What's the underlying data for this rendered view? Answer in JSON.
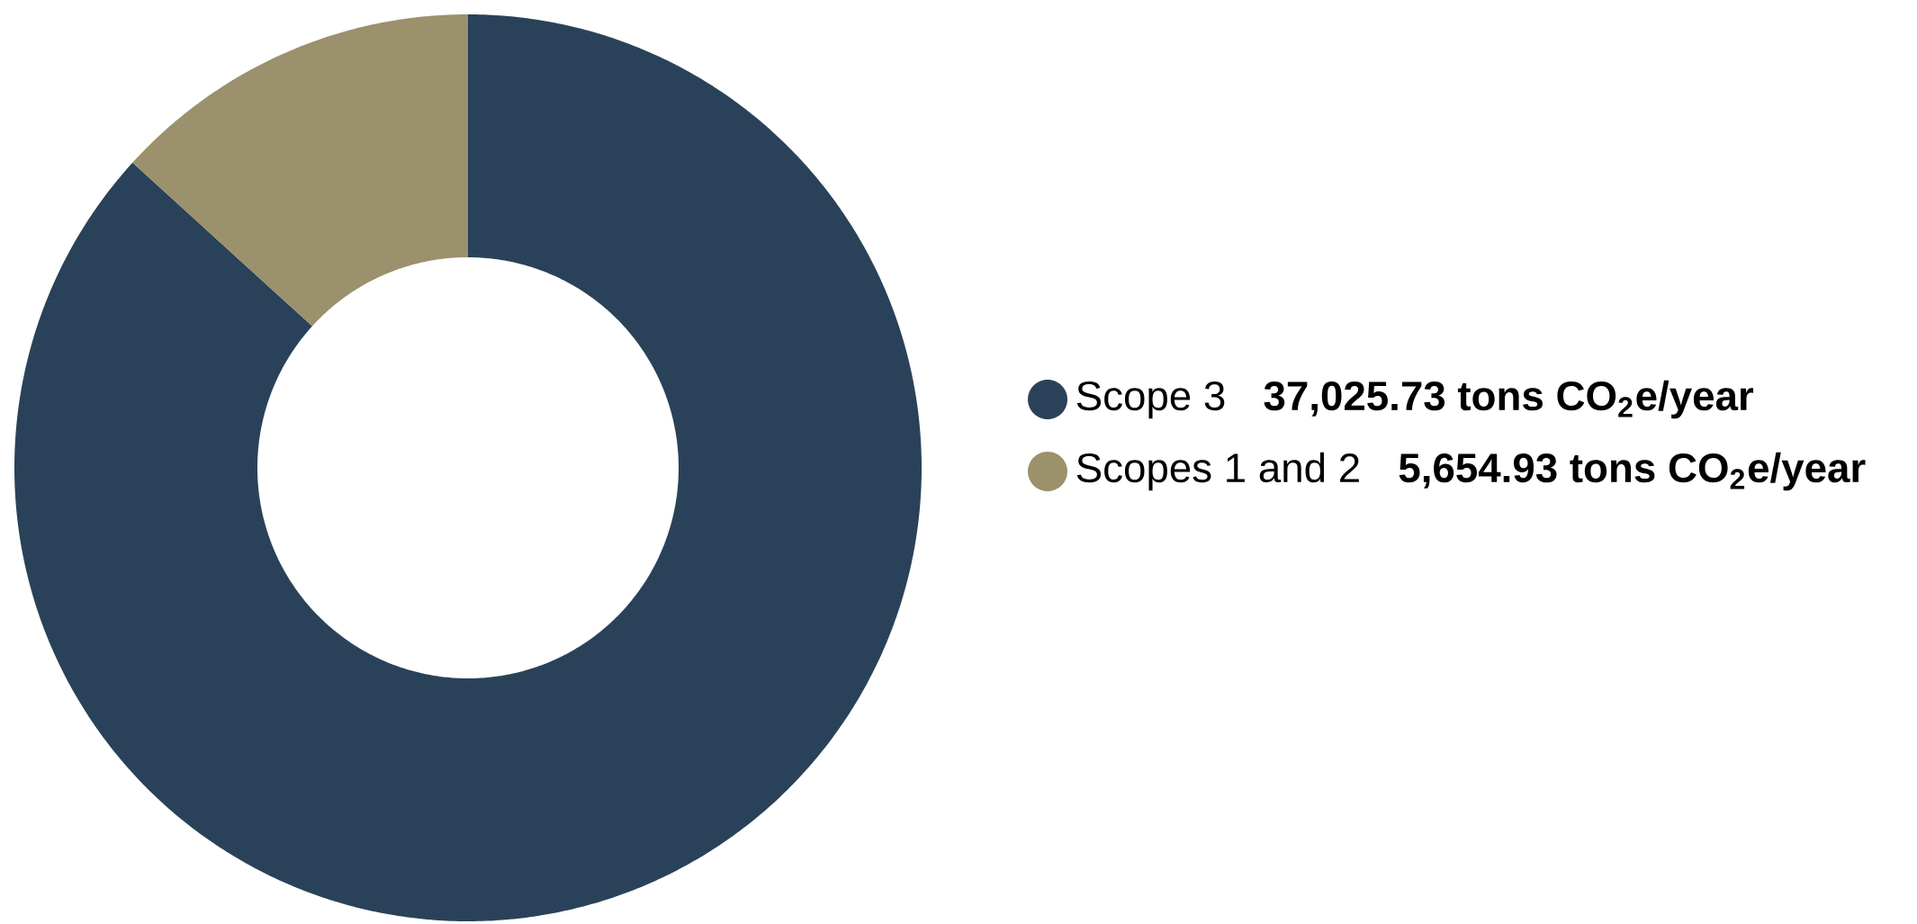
{
  "chart_data": {
    "type": "donut",
    "categories": [
      "Scope 3",
      "Scopes 1 and 2"
    ],
    "values": [
      37025.73,
      5654.93
    ],
    "value_labels": [
      "37,025.73 tons CO$_{2}$e/year",
      "5,654.93 tons CO$_{2}$e/year"
    ],
    "colors": [
      "#2a4259",
      "#9b916c"
    ],
    "legend": "right"
  }
}
